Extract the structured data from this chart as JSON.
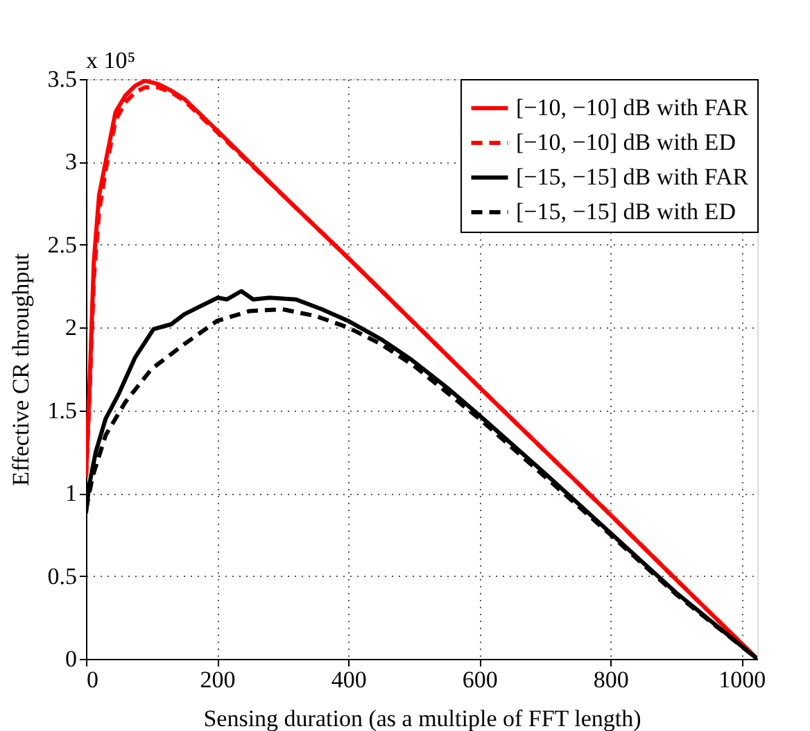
{
  "chart_data": {
    "type": "line",
    "xlabel": "Sensing duration (as a multiple of FFT length)",
    "ylabel": "Effective CR throughput",
    "annotations": [
      "x 10⁵"
    ],
    "xlim": [
      0,
      1024
    ],
    "ylim": [
      0,
      3.5
    ],
    "xticks": [
      0,
      200,
      400,
      600,
      800,
      1000
    ],
    "yticks": [
      0,
      0.5,
      1,
      1.5,
      2,
      2.5,
      3,
      3.5
    ],
    "grid": true,
    "legend": "top right",
    "marker": "none",
    "series": [
      {
        "name": "[−10, −10] dB with FAR",
        "color": "#ff0000",
        "line_style": "solid",
        "x": [
          0,
          5,
          12,
          20,
          30,
          45,
          60,
          75,
          90,
          110,
          130,
          150,
          200,
          300,
          400,
          500,
          600,
          683,
          800,
          900,
          1024
        ],
        "values": [
          1.1,
          1.6,
          2.4,
          2.8,
          3.0,
          3.3,
          3.4,
          3.46,
          3.49,
          3.47,
          3.43,
          3.38,
          3.19,
          2.8,
          2.42,
          2.03,
          1.64,
          1.32,
          0.87,
          0.48,
          0
        ]
      },
      {
        "name": "[−10, −10] dB with ED",
        "color": "#ff0000",
        "line_style": "dashed",
        "x": [
          0,
          5,
          12,
          20,
          30,
          45,
          60,
          75,
          90,
          110,
          130,
          150,
          200,
          300,
          400,
          500,
          600,
          683,
          800,
          900,
          1024
        ],
        "values": [
          1.1,
          1.55,
          2.3,
          2.7,
          2.95,
          3.25,
          3.36,
          3.42,
          3.45,
          3.45,
          3.42,
          3.37,
          3.18,
          2.8,
          2.42,
          2.03,
          1.64,
          1.32,
          0.87,
          0.48,
          0
        ]
      },
      {
        "name": "[−15, −15] dB with FAR",
        "color": "#000000",
        "line_style": "solid",
        "x": [
          0,
          5,
          15,
          30,
          50,
          75,
          103,
          130,
          150,
          170,
          201,
          215,
          237,
          255,
          280,
          320,
          360,
          400,
          450,
          495,
          550,
          600,
          700,
          800,
          900,
          1024
        ],
        "values": [
          0.88,
          1.05,
          1.25,
          1.45,
          1.6,
          1.82,
          1.99,
          2.02,
          2.08,
          2.12,
          2.18,
          2.17,
          2.22,
          2.17,
          2.18,
          2.17,
          2.11,
          2.04,
          1.93,
          1.81,
          1.64,
          1.47,
          1.12,
          0.76,
          0.4,
          0
        ]
      },
      {
        "name": "[−15, −15] dB with ED",
        "color": "#000000",
        "line_style": "dashed",
        "x": [
          0,
          10,
          30,
          60,
          100,
          150,
          200,
          250,
          300,
          350,
          400,
          450,
          500,
          600,
          700,
          800,
          900,
          1024
        ],
        "values": [
          0.9,
          1.1,
          1.35,
          1.55,
          1.75,
          1.9,
          2.04,
          2.1,
          2.11,
          2.07,
          2.0,
          1.9,
          1.77,
          1.45,
          1.1,
          0.75,
          0.39,
          0
        ]
      }
    ]
  }
}
